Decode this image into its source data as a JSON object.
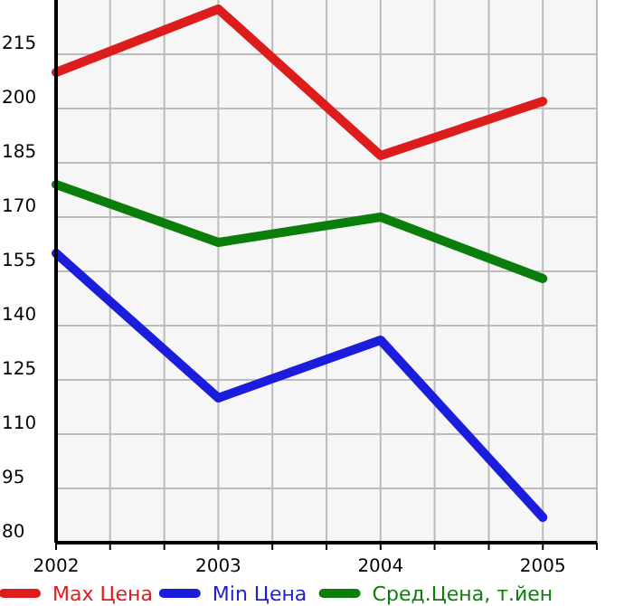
{
  "chart_data": {
    "type": "line",
    "x": [
      2002,
      2003,
      2004,
      2005
    ],
    "series": [
      {
        "name": "Max Цена",
        "color": "#dd1c1c",
        "values": [
          210,
          227.5,
          187,
          202
        ]
      },
      {
        "name": "Min Цена",
        "color": "#1c1cdd",
        "values": [
          160,
          120,
          136,
          87
        ]
      },
      {
        "name": "Сред.Цена, т.йен",
        "color": "#0a7d0a",
        "values": [
          179,
          163,
          170,
          153
        ]
      }
    ],
    "xlim": [
      2002,
      2005.333
    ],
    "xticks": [
      2002,
      {
        "value": 2002.333,
        "label": null
      },
      {
        "value": 2002.667,
        "label": null
      },
      2003,
      {
        "value": 2003.333,
        "label": null
      },
      {
        "value": 2003.667,
        "label": null
      },
      2004,
      {
        "value": 2004.333,
        "label": null
      },
      {
        "value": 2004.667,
        "label": null
      },
      2005,
      {
        "value": 2005.333,
        "label": null
      }
    ],
    "ylim": [
      80,
      230
    ],
    "yticks": [
      80,
      95,
      110,
      125,
      140,
      155,
      170,
      185,
      200,
      215
    ],
    "grid": true,
    "legend": "bottom",
    "marker": "none",
    "line_style": "solid"
  }
}
